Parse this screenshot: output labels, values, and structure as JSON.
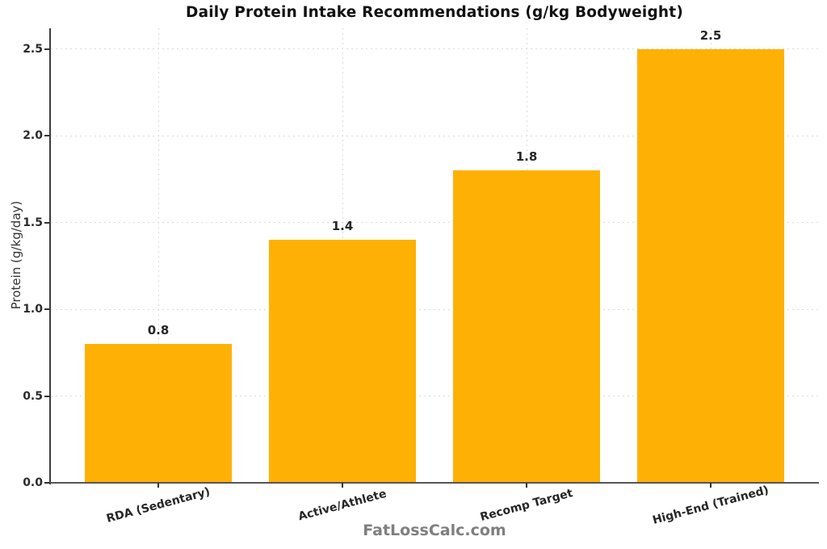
{
  "chart_data": {
    "type": "bar",
    "title": "Daily Protein Intake Recommendations (g/kg Bodyweight)",
    "categories": [
      "RDA (Sedentary)",
      "Active/Athlete",
      "Recomp Target",
      "High-End (Trained)"
    ],
    "values": [
      0.8,
      1.4,
      1.8,
      2.5
    ],
    "value_labels": [
      "0.8",
      "1.4",
      "1.8",
      "2.5"
    ],
    "xlabel": "",
    "ylabel": "Protein (g/kg/day)",
    "ylim": [
      0,
      2.62
    ],
    "yticks": [
      0,
      0.5,
      1,
      1.5,
      2,
      2.5
    ],
    "ytick_labels": [
      "0.0",
      "0.5",
      "1.0",
      "1.5",
      "2.0",
      "2.5"
    ],
    "grid": "dashed light-gray horizontal and vertical gridlines",
    "legend": "none",
    "bar_color": "#FFB005",
    "annotation": "FatLossCalc.com"
  },
  "colors": {
    "background": "#ffffff",
    "bar": "#FFB005",
    "grid": "#dcdcdc",
    "spine": "#3c3c3c",
    "text": "#262626",
    "watermark": "#7f7f7f"
  }
}
